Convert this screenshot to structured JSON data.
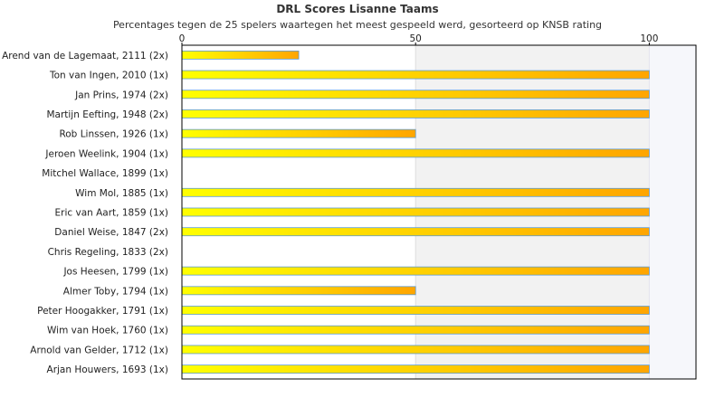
{
  "chart_data": {
    "type": "bar",
    "orientation": "horizontal",
    "title": "DRL Scores Lisanne Taams",
    "subtitle": "Percentages tegen de 25 spelers waartegen het meest gespeeld werd, gesorteerd op KNSB rating",
    "xlim": [
      0,
      110
    ],
    "xticks": [
      0,
      50,
      100
    ],
    "grid": true,
    "categories": [
      "Arend van de Lagemaat, 2111 (2x)",
      "Ton van Ingen, 2010 (1x)",
      "Jan Prins, 1974 (2x)",
      "Martijn Eefting, 1948 (2x)",
      "Rob Linssen, 1926 (1x)",
      "Jeroen Weelink, 1904 (1x)",
      "Mitchel Wallace, 1899 (1x)",
      "Wim Mol, 1885 (1x)",
      "Eric van Aart, 1859 (1x)",
      "Daniel Weise, 1847 (2x)",
      "Chris Regeling, 1833 (2x)",
      "Jos Heesen, 1799 (1x)",
      "Almer Toby, 1794 (1x)",
      "Peter Hoogakker, 1791 (1x)",
      "Wim van Hoek, 1760 (1x)",
      "Arnold van Gelder, 1712 (1x)",
      "Arjan Houwers, 1693 (1x)"
    ],
    "values": [
      25,
      100,
      100,
      100,
      50,
      100,
      0,
      100,
      100,
      100,
      0,
      100,
      50,
      100,
      100,
      100,
      100
    ],
    "colors": {
      "bar_start": "#ffff00",
      "bar_end": "#ffa500",
      "bar_border": "#5b9bd5",
      "band_50_100": "#f2f2f2",
      "band_100_110": "#f6f7fb",
      "axis": "#000000"
    }
  }
}
